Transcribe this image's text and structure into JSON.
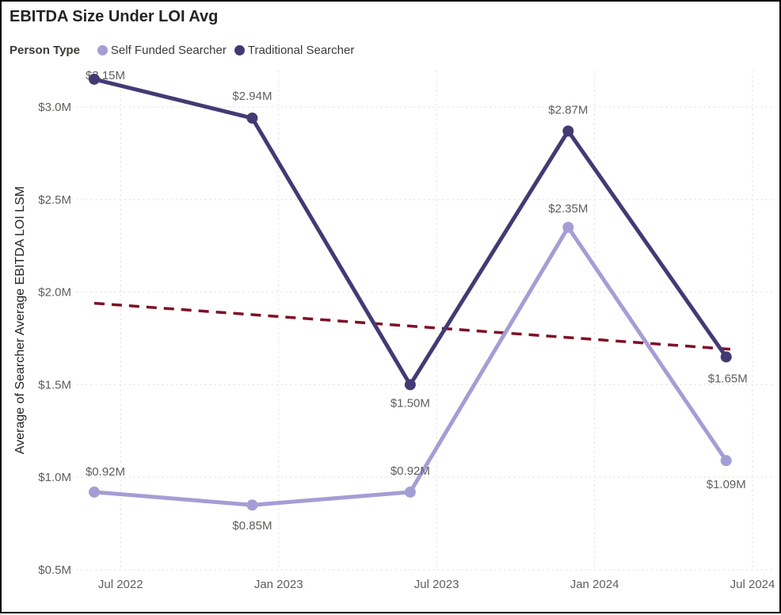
{
  "header": {
    "title": "EBITDA Size Under LOI Avg"
  },
  "legend": {
    "label": "Person Type",
    "items": [
      {
        "label": "Self Funded Searcher",
        "color": "#a59dd5"
      },
      {
        "label": "Traditional Searcher",
        "color": "#433a74"
      }
    ]
  },
  "chart_data": {
    "type": "line",
    "title": "EBITDA Size Under LOI Avg",
    "xlabel": "",
    "ylabel": "Average of Searcher Average EBITDA LOI LSM",
    "ylim": [
      0.5,
      3.0
    ],
    "grid": "dotted",
    "grid_color": "#e2e2e2",
    "legend_position": "top",
    "x_ticks": [
      {
        "month": 1,
        "label": "Jul 2022"
      },
      {
        "month": 7,
        "label": "Jan 2023"
      },
      {
        "month": 13,
        "label": "Jul 2023"
      },
      {
        "month": 19,
        "label": "Jan 2024"
      },
      {
        "month": 25,
        "label": "Jul 2024"
      }
    ],
    "y_ticks": [
      {
        "value": 0.5,
        "label": "$0.5M"
      },
      {
        "value": 1.0,
        "label": "$1.0M"
      },
      {
        "value": 1.5,
        "label": "$1.5M"
      },
      {
        "value": 2.0,
        "label": "$2.0M"
      },
      {
        "value": 2.5,
        "label": "$2.5M"
      },
      {
        "value": 3.0,
        "label": "$3.0M"
      }
    ],
    "series": [
      {
        "name": "Self Funded Searcher",
        "color": "#a59dd5",
        "points": [
          {
            "month": 0,
            "value": 0.92,
            "label": "$0.92M",
            "label_dx": 14,
            "label_dy": -26
          },
          {
            "month": 6,
            "value": 0.85,
            "label": "$0.85M",
            "label_dx": 0,
            "label_dy": 26
          },
          {
            "month": 12,
            "value": 0.92,
            "label": "$0.92M",
            "label_dx": 0,
            "label_dy": -27
          },
          {
            "month": 18,
            "value": 2.35,
            "label": "$2.35M",
            "label_dx": 0,
            "label_dy": -24
          },
          {
            "month": 24,
            "value": 1.09,
            "label": "$1.09M",
            "label_dx": 0,
            "label_dy": 30
          }
        ]
      },
      {
        "name": "Traditional Searcher",
        "color": "#433a74",
        "points": [
          {
            "month": 0,
            "value": 3.15,
            "label": "$3.15M",
            "label_dx": 14,
            "label_dy": -5
          },
          {
            "month": 6,
            "value": 2.94,
            "label": "$2.94M",
            "label_dx": 0,
            "label_dy": -28
          },
          {
            "month": 12,
            "value": 1.5,
            "label": "$1.50M",
            "label_dx": 0,
            "label_dy": 23
          },
          {
            "month": 18,
            "value": 2.87,
            "label": "$2.87M",
            "label_dx": 0,
            "label_dy": -27
          },
          {
            "month": 24,
            "value": 1.65,
            "label": "$1.65M",
            "label_dx": 2,
            "label_dy": 27
          }
        ]
      }
    ],
    "trend_line": {
      "color": "#7f0f26",
      "style": "dashed",
      "points": [
        {
          "month": 0,
          "value": 1.94
        },
        {
          "month": 24.3,
          "value": 1.69
        }
      ]
    }
  }
}
